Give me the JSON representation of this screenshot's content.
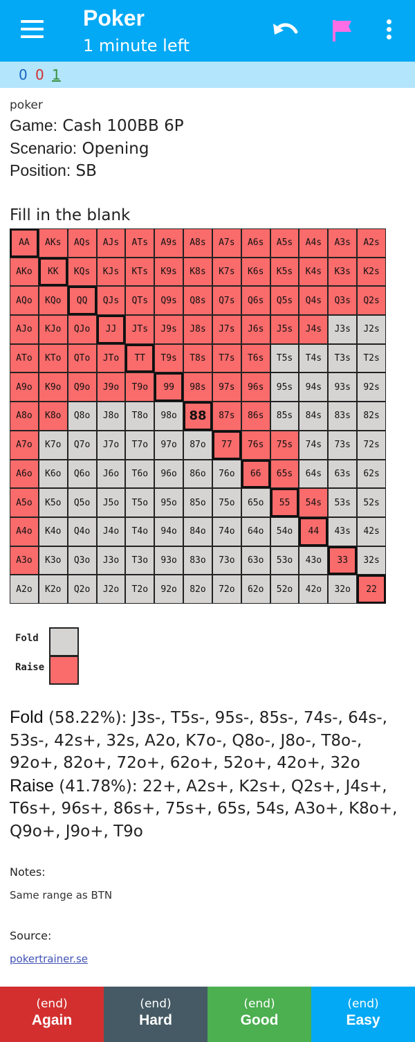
{
  "header": {
    "title": "Poker",
    "subtitle": "1 minute left",
    "colors": {
      "appbar": "#03a9f4",
      "flag": "#ff6ee5"
    }
  },
  "counts": {
    "new": "0",
    "learning": "0",
    "review": "1"
  },
  "card": {
    "deck": "poker",
    "game_label": "Game:",
    "game_value": "Cash 100BB 6P",
    "scenario_label": "Scenario:",
    "scenario_value": "Opening",
    "position_label": "Position:",
    "position_value": "SB",
    "prompt": "Fill in the blank"
  },
  "range_grid": {
    "highlight": "88",
    "colors": {
      "raise": "#fa6b6b",
      "fold": "#d6d3d3"
    },
    "rows": [
      [
        "AA",
        "AKs",
        "AQs",
        "AJs",
        "ATs",
        "A9s",
        "A8s",
        "A7s",
        "A6s",
        "A5s",
        "A4s",
        "A3s",
        "A2s"
      ],
      [
        "AKo",
        "KK",
        "KQs",
        "KJs",
        "KTs",
        "K9s",
        "K8s",
        "K7s",
        "K6s",
        "K5s",
        "K4s",
        "K3s",
        "K2s"
      ],
      [
        "AQo",
        "KQo",
        "QQ",
        "QJs",
        "QTs",
        "Q9s",
        "Q8s",
        "Q7s",
        "Q6s",
        "Q5s",
        "Q4s",
        "Q3s",
        "Q2s"
      ],
      [
        "AJo",
        "KJo",
        "QJo",
        "JJ",
        "JTs",
        "J9s",
        "J8s",
        "J7s",
        "J6s",
        "J5s",
        "J4s",
        "J3s",
        "J2s"
      ],
      [
        "ATo",
        "KTo",
        "QTo",
        "JTo",
        "TT",
        "T9s",
        "T8s",
        "T7s",
        "T6s",
        "T5s",
        "T4s",
        "T3s",
        "T2s"
      ],
      [
        "A9o",
        "K9o",
        "Q9o",
        "J9o",
        "T9o",
        "99",
        "98s",
        "97s",
        "96s",
        "95s",
        "94s",
        "93s",
        "92s"
      ],
      [
        "A8o",
        "K8o",
        "Q8o",
        "J8o",
        "T8o",
        "98o",
        "88",
        "87s",
        "86s",
        "85s",
        "84s",
        "83s",
        "82s"
      ],
      [
        "A7o",
        "K7o",
        "Q7o",
        "J7o",
        "T7o",
        "97o",
        "87o",
        "77",
        "76s",
        "75s",
        "74s",
        "73s",
        "72s"
      ],
      [
        "A6o",
        "K6o",
        "Q6o",
        "J6o",
        "T6o",
        "96o",
        "86o",
        "76o",
        "66",
        "65s",
        "64s",
        "63s",
        "62s"
      ],
      [
        "A5o",
        "K5o",
        "Q5o",
        "J5o",
        "T5o",
        "95o",
        "85o",
        "75o",
        "65o",
        "55",
        "54s",
        "53s",
        "52s"
      ],
      [
        "A4o",
        "K4o",
        "Q4o",
        "J4o",
        "T4o",
        "94o",
        "84o",
        "74o",
        "64o",
        "54o",
        "44",
        "43s",
        "42s"
      ],
      [
        "A3o",
        "K3o",
        "Q3o",
        "J3o",
        "T3o",
        "93o",
        "83o",
        "73o",
        "63o",
        "53o",
        "43o",
        "33",
        "32s"
      ],
      [
        "A2o",
        "K2o",
        "Q2o",
        "J2o",
        "T2o",
        "92o",
        "82o",
        "72o",
        "62o",
        "52o",
        "42o",
        "32o",
        "22"
      ]
    ],
    "actions": [
      "RRRRRRRRRRRRR",
      "RRRRRRRRRRRRR",
      "RRRRRRRRRRRRR",
      "RRRRRRRRRRRFF",
      "RRRRRRRRRFFFF",
      "RRRRRRRRRFFFF",
      "RRFFFFRRRFFFF",
      "RFFFFFFRRRFFF",
      "RFFFFFFFRRFFF",
      "RFFFFFFFFRRFF",
      "RFFFFFFFFFRFF",
      "RFFFFFFFFFFRF",
      "FFFFFFFFFFFFR"
    ]
  },
  "legend": {
    "fold": "Fold",
    "raise": "Raise"
  },
  "summary": {
    "fold_label": "Fold",
    "fold_text": " (58.22%): J3s-, T5s-, 95s-, 85s-, 74s-, 64s-, 53s-, 42s+, 32s, A2o, K7o-, Q8o-, J8o-, T8o-, 92o+, 82o+, 72o+, 62o+, 52o+, 42o+, 32o",
    "raise_label": "Raise",
    "raise_text": " (41.78%): 22+, A2s+, K2s+, Q2s+, J4s+, T6s+, 96s+, 86s+, 75s+, 65s, 54s, A3o+, K8o+, Q9o+, J9o+, T9o"
  },
  "notes": {
    "label": "Notes:",
    "value": "Same range as BTN"
  },
  "source": {
    "label": "Source:",
    "value": "pokertrainer.se"
  },
  "answer_buttons": [
    {
      "time": "(end)",
      "label": "Again",
      "color": "#d32f2f"
    },
    {
      "time": "(end)",
      "label": "Hard",
      "color": "#455a64"
    },
    {
      "time": "(end)",
      "label": "Good",
      "color": "#4caf50"
    },
    {
      "time": "(end)",
      "label": "Easy",
      "color": "#03a9f4"
    }
  ]
}
